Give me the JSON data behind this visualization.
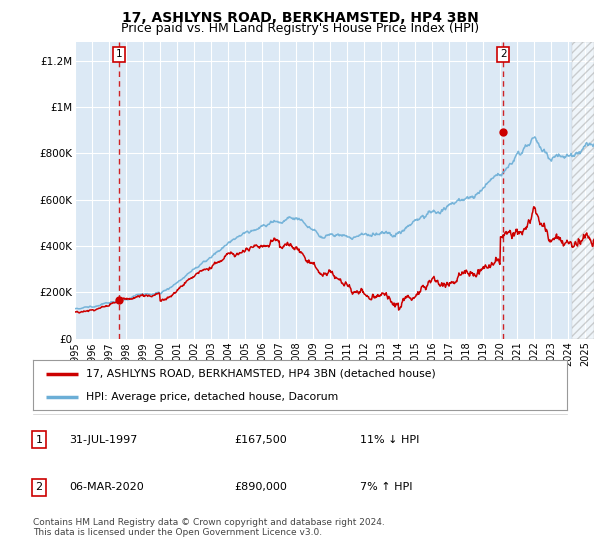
{
  "title": "17, ASHLYNS ROAD, BERKHAMSTED, HP4 3BN",
  "subtitle": "Price paid vs. HM Land Registry's House Price Index (HPI)",
  "ylabel_ticks": [
    "£0",
    "£200K",
    "£400K",
    "£600K",
    "£800K",
    "£1M",
    "£1.2M"
  ],
  "ytick_values": [
    0,
    200000,
    400000,
    600000,
    800000,
    1000000,
    1200000
  ],
  "ylim": [
    0,
    1280000
  ],
  "xlim_start": 1995,
  "xlim_end": 2025.5,
  "sale1_x": 1997.58,
  "sale1_y": 167500,
  "sale1_label": "1",
  "sale1_date": "31-JUL-1997",
  "sale1_price": "£167,500",
  "sale1_hpi": "11% ↓ HPI",
  "sale2_x": 2020.17,
  "sale2_y": 890000,
  "sale2_label": "2",
  "sale2_date": "06-MAR-2020",
  "sale2_price": "£890,000",
  "sale2_hpi": "7% ↑ HPI",
  "line_price_color": "#cc0000",
  "line_hpi_color": "#6baed6",
  "plot_bg_color": "#dce9f5",
  "legend_label_price": "17, ASHLYNS ROAD, BERKHAMSTED, HP4 3BN (detached house)",
  "legend_label_hpi": "HPI: Average price, detached house, Dacorum",
  "footer": "Contains HM Land Registry data © Crown copyright and database right 2024.\nThis data is licensed under the Open Government Licence v3.0.",
  "title_fontsize": 10,
  "subtitle_fontsize": 9,
  "tick_fontsize": 7.5,
  "hatch_start": 2024.2
}
